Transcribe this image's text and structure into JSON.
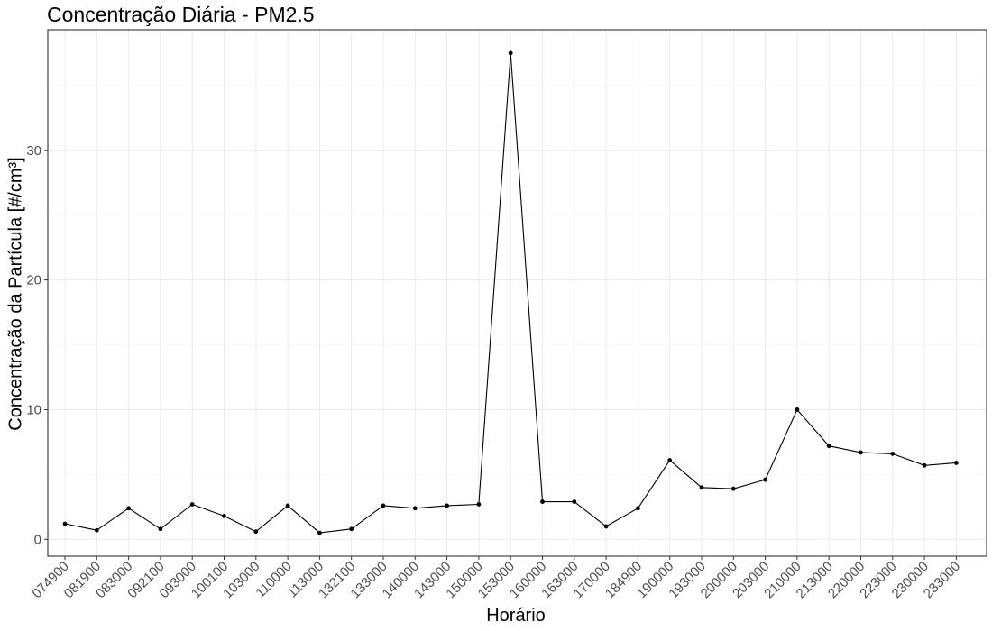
{
  "chart_data": {
    "type": "line",
    "title": "Concentração Diária - PM2.5",
    "xlabel": "Horário",
    "ylabel": "Concentração da Partícula [#/cm³]",
    "categories": [
      "074900",
      "081900",
      "083000",
      "092100",
      "093000",
      "100100",
      "103000",
      "110000",
      "113000",
      "132100",
      "133000",
      "140000",
      "143000",
      "150000",
      "153000",
      "160000",
      "163000",
      "170000",
      "184900",
      "190000",
      "193000",
      "200000",
      "203000",
      "210000",
      "213000",
      "220000",
      "223000",
      "230000",
      "233000"
    ],
    "values": [
      1.2,
      0.7,
      2.4,
      0.8,
      2.7,
      1.8,
      0.6,
      2.6,
      0.5,
      0.8,
      2.6,
      2.4,
      2.6,
      2.7,
      37.5,
      2.9,
      2.9,
      1.0,
      2.4,
      6.1,
      4.0,
      3.9,
      4.6,
      10.0,
      7.2,
      6.7,
      6.6,
      5.7,
      5.9
    ],
    "yticks": [
      0,
      10,
      20,
      30
    ],
    "ylim": [
      -1.3,
      39.3
    ],
    "grid": true,
    "legend": "none",
    "colors": {
      "line": "#000000",
      "point": "#000000",
      "grid_major": "#ebebeb",
      "grid_minor": "#f5f5f5",
      "panel_border": "#333333",
      "tick_text": "#4d4d4d"
    }
  }
}
